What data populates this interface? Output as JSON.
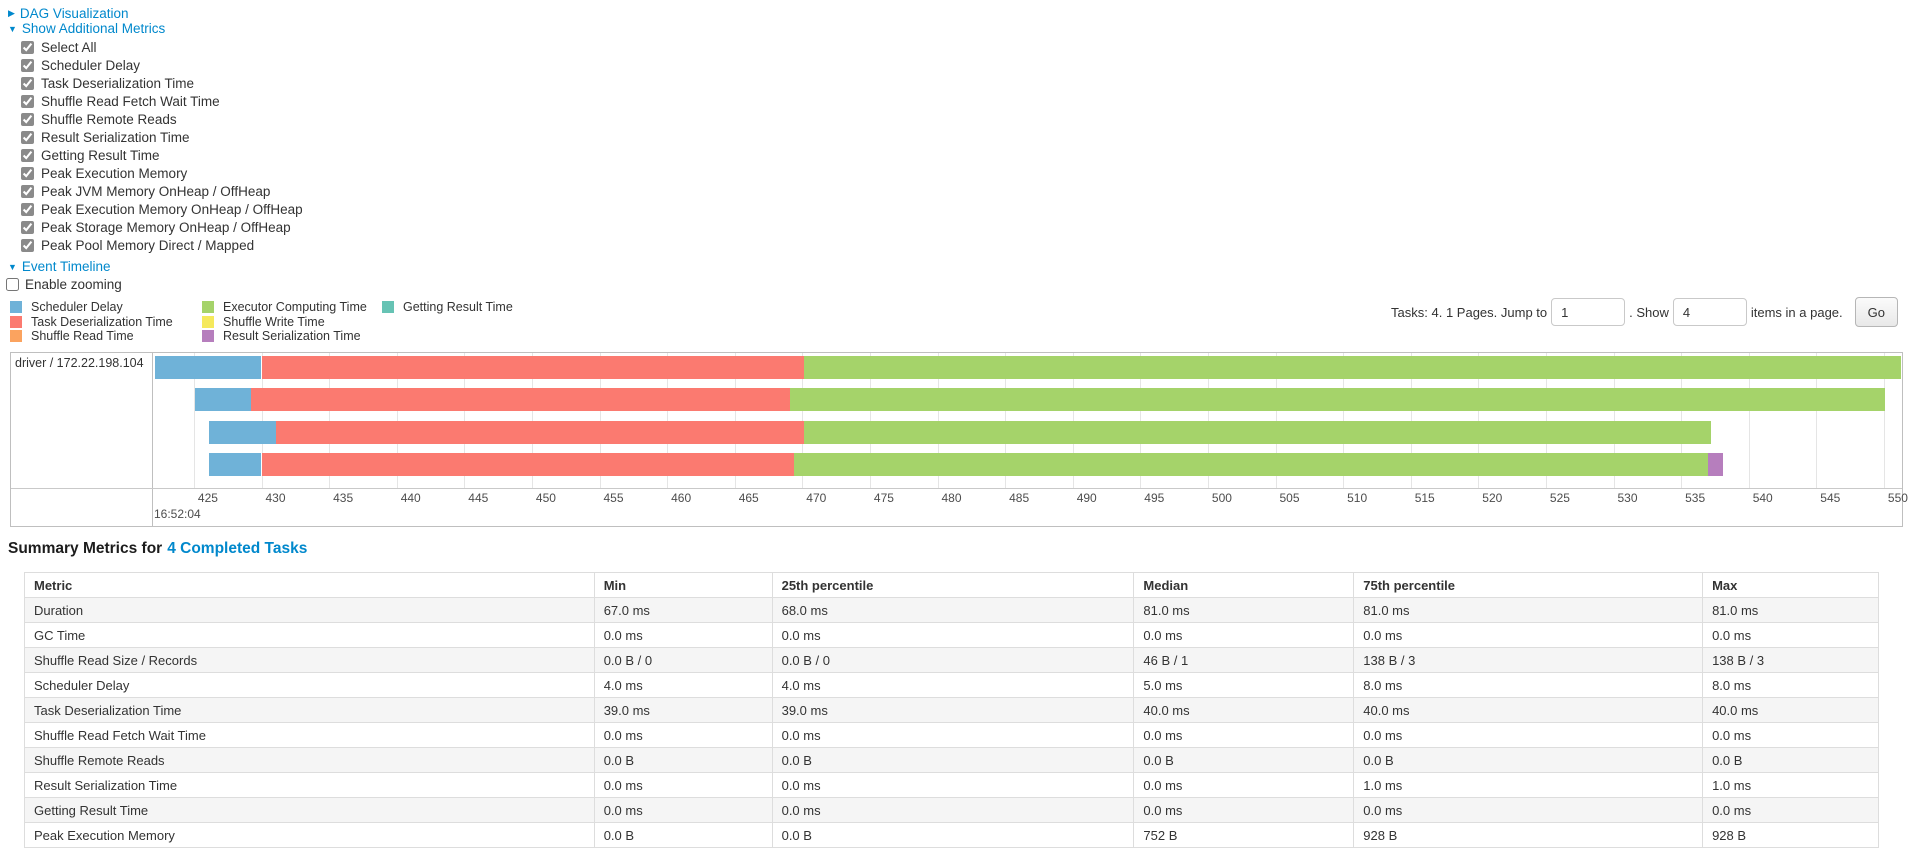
{
  "colors": {
    "link": "#0088cc",
    "scheduler": "#6FB2D8",
    "deserialization": "#FB7A70",
    "shuffle_read": "#FBA35F",
    "compute": "#A5D36A",
    "shuffle_write": "#F5E95C",
    "result_serialization": "#B67EBD",
    "getting_result": "#66C3B4"
  },
  "icons": {
    "collapsed_arrow": "▶",
    "expanded_arrow": "▼"
  },
  "controls": {
    "dag_label": "DAG Visualization",
    "show_metrics_label": "Show Additional Metrics",
    "checkboxes": [
      {
        "label": "Select All",
        "checked": true
      },
      {
        "label": "Scheduler Delay",
        "checked": true
      },
      {
        "label": "Task Deserialization Time",
        "checked": true
      },
      {
        "label": "Shuffle Read Fetch Wait Time",
        "checked": true
      },
      {
        "label": "Shuffle Remote Reads",
        "checked": true
      },
      {
        "label": "Result Serialization Time",
        "checked": true
      },
      {
        "label": "Getting Result Time",
        "checked": true
      },
      {
        "label": "Peak Execution Memory",
        "checked": true
      },
      {
        "label": "Peak JVM Memory OnHeap / OffHeap",
        "checked": true
      },
      {
        "label": "Peak Execution Memory OnHeap / OffHeap",
        "checked": true
      },
      {
        "label": "Peak Storage Memory OnHeap / OffHeap",
        "checked": true
      },
      {
        "label": "Peak Pool Memory Direct / Mapped",
        "checked": true
      }
    ],
    "event_timeline_label": "Event Timeline",
    "enable_zooming_label": "Enable zooming",
    "enable_zooming_checked": false
  },
  "legend": {
    "columns": [
      [
        {
          "label": "Scheduler Delay",
          "color_key": "scheduler"
        },
        {
          "label": "Task Deserialization Time",
          "color_key": "deserialization"
        },
        {
          "label": "Shuffle Read Time",
          "color_key": "shuffle_read"
        }
      ],
      [
        {
          "label": "Executor Computing Time",
          "color_key": "compute"
        },
        {
          "label": "Shuffle Write Time",
          "color_key": "shuffle_write"
        },
        {
          "label": "Result Serialization Time",
          "color_key": "result_serialization"
        }
      ],
      [
        {
          "label": "Getting Result Time",
          "color_key": "getting_result"
        }
      ]
    ]
  },
  "pagination": {
    "prefix": "Tasks: 4. 1 Pages. Jump to",
    "jump_value": "1",
    "mid": ". Show",
    "show_value": "4",
    "suffix": "items in a page.",
    "go": "Go"
  },
  "timeline": {
    "group_label": "driver / 172.22.198.104",
    "axis": {
      "major_label": "16:52:04",
      "tick_min": 425,
      "tick_max": 550,
      "tick_step": 5,
      "domain_min": 422.05,
      "domain_max": 551.34
    },
    "tasks": [
      {
        "segments": [
          {
            "type": "scheduler",
            "start": 422.1,
            "end": 430.0
          },
          {
            "type": "deserialization",
            "start": 430.0,
            "end": 470.1
          },
          {
            "type": "compute",
            "start": 470.1,
            "end": 551.3
          }
        ]
      },
      {
        "segments": [
          {
            "type": "scheduler",
            "start": 425.1,
            "end": 429.2
          },
          {
            "type": "deserialization",
            "start": 429.2,
            "end": 469.1
          },
          {
            "type": "compute",
            "start": 469.1,
            "end": 550.1
          }
        ]
      },
      {
        "segments": [
          {
            "type": "scheduler",
            "start": 426.1,
            "end": 431.1
          },
          {
            "type": "deserialization",
            "start": 431.1,
            "end": 470.1
          },
          {
            "type": "compute",
            "start": 470.1,
            "end": 537.2
          }
        ]
      },
      {
        "segments": [
          {
            "type": "scheduler",
            "start": 426.1,
            "end": 430.0
          },
          {
            "type": "deserialization",
            "start": 430.0,
            "end": 469.4
          },
          {
            "type": "compute",
            "start": 469.4,
            "end": 537.0
          },
          {
            "type": "result_serialization",
            "start": 537.0,
            "end": 538.1
          }
        ]
      }
    ]
  },
  "summary": {
    "title_prefix": "Summary Metrics for",
    "title_link": "4 Completed Tasks",
    "table": {
      "headers": [
        "Metric",
        "Min",
        "25th percentile",
        "Median",
        "75th percentile",
        "Max"
      ],
      "rows": [
        {
          "metric": "Duration",
          "values": [
            "67.0 ms",
            "68.0 ms",
            "81.0 ms",
            "81.0 ms",
            "81.0 ms"
          ]
        },
        {
          "metric": "GC Time",
          "values": [
            "0.0 ms",
            "0.0 ms",
            "0.0 ms",
            "0.0 ms",
            "0.0 ms"
          ]
        },
        {
          "metric": "Shuffle Read Size / Records",
          "values": [
            "0.0 B / 0",
            "0.0 B / 0",
            "46 B / 1",
            "138 B / 3",
            "138 B / 3"
          ]
        },
        {
          "metric": "Scheduler Delay",
          "values": [
            "4.0 ms",
            "4.0 ms",
            "5.0 ms",
            "8.0 ms",
            "8.0 ms"
          ]
        },
        {
          "metric": "Task Deserialization Time",
          "values": [
            "39.0 ms",
            "39.0 ms",
            "40.0 ms",
            "40.0 ms",
            "40.0 ms"
          ]
        },
        {
          "metric": "Shuffle Read Fetch Wait Time",
          "values": [
            "0.0 ms",
            "0.0 ms",
            "0.0 ms",
            "0.0 ms",
            "0.0 ms"
          ]
        },
        {
          "metric": "Shuffle Remote Reads",
          "values": [
            "0.0 B",
            "0.0 B",
            "0.0 B",
            "0.0 B",
            "0.0 B"
          ]
        },
        {
          "metric": "Result Serialization Time",
          "values": [
            "0.0 ms",
            "0.0 ms",
            "0.0 ms",
            "1.0 ms",
            "1.0 ms"
          ]
        },
        {
          "metric": "Getting Result Time",
          "values": [
            "0.0 ms",
            "0.0 ms",
            "0.0 ms",
            "0.0 ms",
            "0.0 ms"
          ]
        },
        {
          "metric": "Peak Execution Memory",
          "values": [
            "0.0 B",
            "0.0 B",
            "752 B",
            "928 B",
            "928 B"
          ]
        }
      ]
    }
  }
}
